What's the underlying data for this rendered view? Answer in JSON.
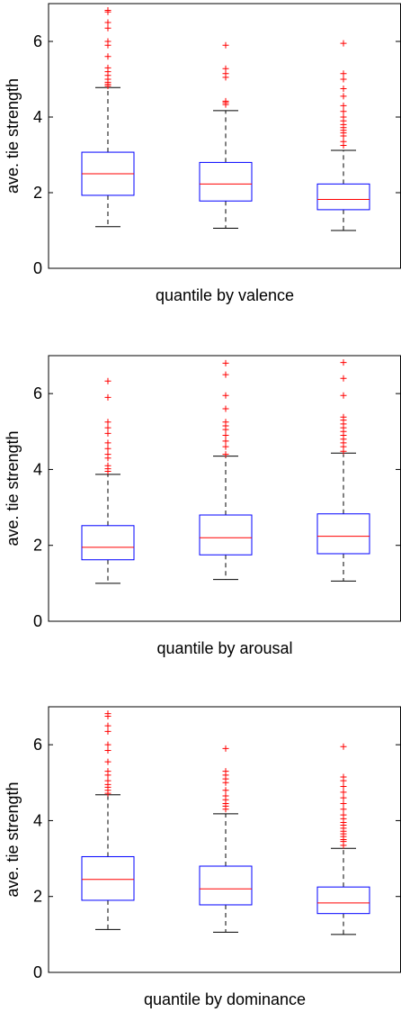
{
  "chart_data": [
    {
      "type": "box",
      "xlabel": "quantile by valence",
      "ylabel": "ave. tie strength",
      "ylim": [
        0,
        7
      ],
      "yticks": [
        0,
        2,
        4,
        6
      ],
      "grid": false,
      "colors": {
        "box": "#0000ff",
        "median": "#ff0000",
        "whisker": "#000000",
        "outlier": "#ff0000"
      },
      "boxes": [
        {
          "min": 1.1,
          "q1": 1.93,
          "median": 2.5,
          "q3": 3.07,
          "max": 4.78,
          "outliers": [
            4.82,
            4.87,
            4.92,
            5.0,
            5.1,
            5.2,
            5.3,
            5.6,
            5.9,
            6.0,
            6.35,
            6.5,
            6.78,
            6.82
          ]
        },
        {
          "min": 1.06,
          "q1": 1.78,
          "median": 2.23,
          "q3": 2.8,
          "max": 4.17,
          "outliers": [
            4.33,
            4.38,
            4.42,
            5.05,
            5.15,
            5.28,
            5.9
          ]
        },
        {
          "min": 1.0,
          "q1": 1.55,
          "median": 1.82,
          "q3": 2.23,
          "max": 3.12,
          "outliers": [
            3.25,
            3.35,
            3.5,
            3.58,
            3.65,
            3.72,
            3.8,
            3.9,
            4.0,
            4.15,
            4.3,
            4.55,
            4.75,
            5.0,
            5.15,
            5.95
          ]
        }
      ]
    },
    {
      "type": "box",
      "xlabel": "quantile by arousal",
      "ylabel": "ave. tie strength",
      "ylim": [
        0,
        7
      ],
      "yticks": [
        0,
        2,
        4,
        6
      ],
      "grid": false,
      "colors": {
        "box": "#0000ff",
        "median": "#ff0000",
        "whisker": "#000000",
        "outlier": "#ff0000"
      },
      "boxes": [
        {
          "min": 1.0,
          "q1": 1.62,
          "median": 1.95,
          "q3": 2.52,
          "max": 3.87,
          "outliers": [
            3.95,
            4.02,
            4.1,
            4.3,
            4.4,
            4.55,
            4.7,
            4.95,
            5.1,
            5.25,
            5.9,
            6.33
          ]
        },
        {
          "min": 1.1,
          "q1": 1.75,
          "median": 2.2,
          "q3": 2.8,
          "max": 4.35,
          "outliers": [
            4.4,
            4.6,
            4.75,
            4.9,
            5.05,
            5.15,
            5.25,
            5.6,
            5.95,
            6.5,
            6.8
          ]
        },
        {
          "min": 1.06,
          "q1": 1.78,
          "median": 2.24,
          "q3": 2.83,
          "max": 4.43,
          "outliers": [
            4.48,
            4.6,
            4.7,
            4.8,
            4.9,
            5.0,
            5.1,
            5.2,
            5.3,
            5.38,
            5.95,
            6.4,
            6.82
          ]
        }
      ]
    },
    {
      "type": "box",
      "xlabel": "quantile by dominance",
      "ylabel": "ave. tie strength",
      "ylim": [
        0,
        7
      ],
      "yticks": [
        0,
        2,
        4,
        6
      ],
      "grid": false,
      "colors": {
        "box": "#0000ff",
        "median": "#ff0000",
        "whisker": "#000000",
        "outlier": "#ff0000"
      },
      "boxes": [
        {
          "min": 1.13,
          "q1": 1.9,
          "median": 2.45,
          "q3": 3.05,
          "max": 4.68,
          "outliers": [
            4.72,
            4.8,
            4.88,
            4.95,
            5.05,
            5.2,
            5.3,
            5.55,
            5.85,
            6.0,
            6.35,
            6.5,
            6.75,
            6.82
          ]
        },
        {
          "min": 1.06,
          "q1": 1.78,
          "median": 2.2,
          "q3": 2.8,
          "max": 4.18,
          "outliers": [
            4.3,
            4.38,
            4.45,
            4.55,
            4.65,
            4.8,
            5.0,
            5.1,
            5.2,
            5.3,
            5.9
          ]
        },
        {
          "min": 1.0,
          "q1": 1.55,
          "median": 1.83,
          "q3": 2.25,
          "max": 3.27,
          "outliers": [
            3.35,
            3.45,
            3.5,
            3.58,
            3.65,
            3.72,
            3.8,
            3.88,
            3.95,
            4.05,
            4.15,
            4.3,
            4.45,
            4.6,
            4.75,
            4.9,
            5.05,
            5.15,
            5.95
          ]
        }
      ]
    }
  ]
}
